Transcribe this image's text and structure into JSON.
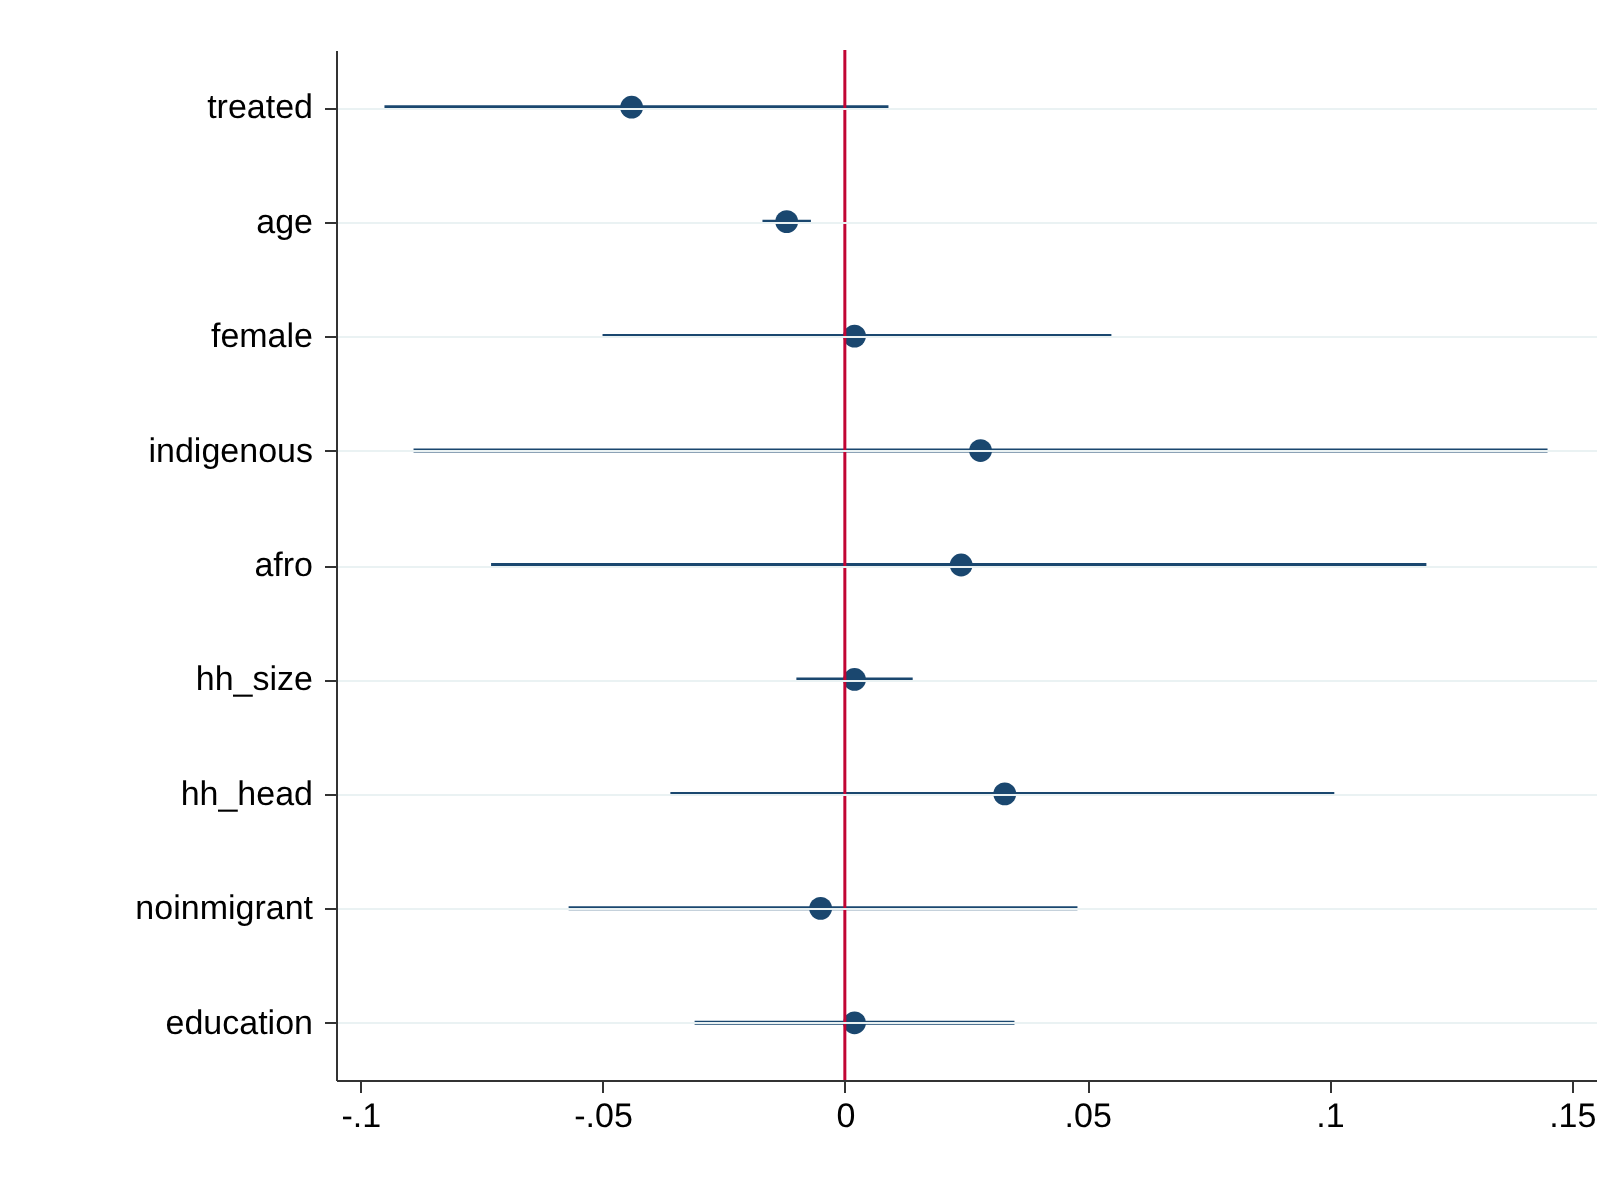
{
  "chart_data": {
    "type": "scatter",
    "orientation": "horizontal",
    "categories": [
      "treated",
      "age",
      "female",
      "indigenous",
      "afro",
      "hh_size",
      "hh_head",
      "noinmigrant",
      "education"
    ],
    "values": [
      -0.044,
      -0.012,
      0.002,
      0.028,
      0.024,
      0.002,
      0.033,
      -0.005,
      0.002
    ],
    "errors": [
      [
        -0.095,
        0.009
      ],
      [
        -0.017,
        -0.007
      ],
      [
        -0.05,
        0.055
      ],
      [
        -0.089,
        0.145
      ],
      [
        -0.073,
        0.12
      ],
      [
        -0.01,
        0.014
      ],
      [
        -0.036,
        0.101
      ],
      [
        -0.057,
        0.048
      ],
      [
        -0.031,
        0.035
      ]
    ],
    "color": "#1a476f",
    "marker": "circle",
    "grid": "y",
    "xlim": [
      -0.105,
      0.155
    ],
    "xticks": [
      {
        "value": -0.1,
        "label": "-.1"
      },
      {
        "value": -0.05,
        "label": "-.05"
      },
      0,
      {
        "value": 0.05,
        "label": ".05"
      },
      {
        "value": 0.1,
        "label": ".1"
      },
      {
        "value": 0.15,
        "label": ".15"
      }
    ],
    "ref_lines": [
      {
        "axis": "x",
        "value": 0,
        "color": "#c10534"
      }
    ]
  }
}
